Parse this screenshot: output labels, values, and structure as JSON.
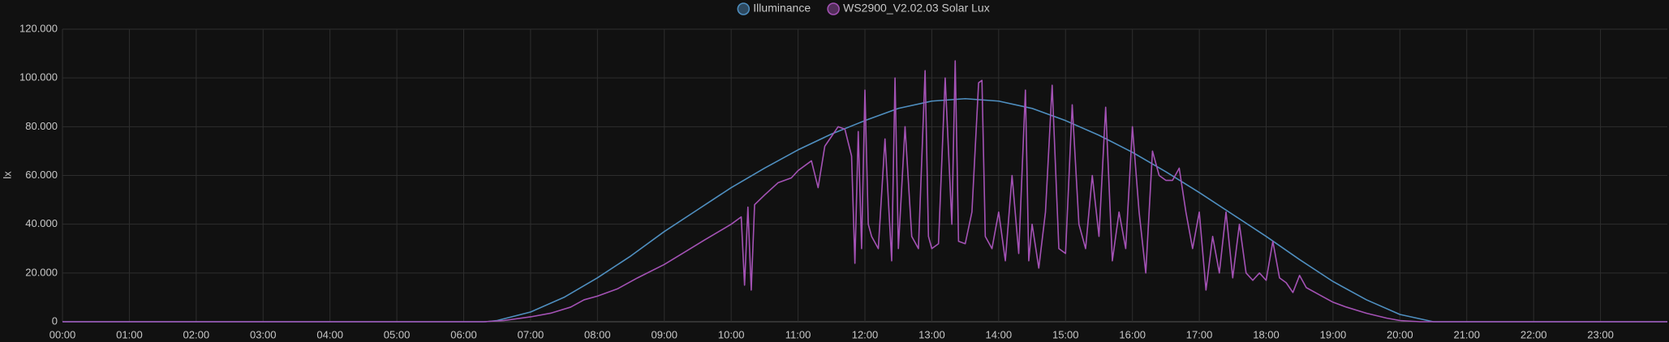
{
  "chart_data": {
    "type": "line",
    "y_label": "lx",
    "xlim": [
      0,
      24
    ],
    "xticks": [
      {
        "value": 0,
        "label": "00:00"
      },
      {
        "value": 1,
        "label": "01:00"
      },
      {
        "value": 2,
        "label": "02:00"
      },
      {
        "value": 3,
        "label": "03:00"
      },
      {
        "value": 4,
        "label": "04:00"
      },
      {
        "value": 5,
        "label": "05:00"
      },
      {
        "value": 6,
        "label": "06:00"
      },
      {
        "value": 7,
        "label": "07:00"
      },
      {
        "value": 8,
        "label": "08:00"
      },
      {
        "value": 9,
        "label": "09:00"
      },
      {
        "value": 10,
        "label": "10:00"
      },
      {
        "value": 11,
        "label": "11:00"
      },
      {
        "value": 12,
        "label": "12:00"
      },
      {
        "value": 13,
        "label": "13:00"
      },
      {
        "value": 14,
        "label": "14:00"
      },
      {
        "value": 15,
        "label": "15:00"
      },
      {
        "value": 16,
        "label": "16:00"
      },
      {
        "value": 17,
        "label": "17:00"
      },
      {
        "value": 18,
        "label": "18:00"
      },
      {
        "value": 19,
        "label": "19:00"
      },
      {
        "value": 20,
        "label": "20:00"
      },
      {
        "value": 21,
        "label": "21:00"
      },
      {
        "value": 22,
        "label": "22:00"
      },
      {
        "value": 23,
        "label": "23:00"
      }
    ],
    "ylim": [
      0,
      120000
    ],
    "yticks": [
      0,
      {
        "value": 20000,
        "label": "20.000"
      },
      {
        "value": 40000,
        "label": "40.000"
      },
      {
        "value": 60000,
        "label": "60.000"
      },
      {
        "value": 80000,
        "label": "80.000"
      },
      {
        "value": 100000,
        "label": "100.000"
      },
      {
        "value": 120000,
        "label": "120.000"
      }
    ],
    "grid": true,
    "legend": "top",
    "series": [
      {
        "name": "Illuminance",
        "color": "#4f8fc0",
        "x": [
          0,
          6.33,
          6.5,
          7,
          7.5,
          8,
          8.5,
          9,
          9.5,
          10,
          10.5,
          11,
          11.5,
          12,
          12.5,
          13,
          13.5,
          14,
          14.5,
          15,
          15.5,
          16,
          16.5,
          17,
          17.5,
          18,
          18.5,
          19,
          19.5,
          20,
          20.5,
          24
        ],
        "values": [
          0,
          0,
          500,
          4000,
          10000,
          18000,
          27000,
          37000,
          46000,
          55000,
          63000,
          70500,
          77000,
          82500,
          87500,
          90500,
          91500,
          90500,
          87500,
          82500,
          76500,
          69500,
          61500,
          53000,
          44000,
          35000,
          25500,
          16500,
          9000,
          3000,
          0,
          0
        ]
      },
      {
        "name": "WS2900_V2.02.03 Solar Lux",
        "color": "#a452b5",
        "x": [
          0,
          6.3,
          6.6,
          7.0,
          7.3,
          7.6,
          7.8,
          8.0,
          8.3,
          8.6,
          9.0,
          9.3,
          9.6,
          10.0,
          10.15,
          10.2,
          10.25,
          10.3,
          10.35,
          10.5,
          10.7,
          10.9,
          11.0,
          11.2,
          11.3,
          11.4,
          11.5,
          11.6,
          11.7,
          11.8,
          11.85,
          11.9,
          11.95,
          12.0,
          12.05,
          12.1,
          12.2,
          12.3,
          12.4,
          12.45,
          12.5,
          12.6,
          12.7,
          12.8,
          12.9,
          12.95,
          13.0,
          13.1,
          13.2,
          13.3,
          13.35,
          13.4,
          13.5,
          13.6,
          13.7,
          13.75,
          13.8,
          13.9,
          14.0,
          14.1,
          14.2,
          14.3,
          14.4,
          14.45,
          14.5,
          14.6,
          14.7,
          14.8,
          14.9,
          15.0,
          15.1,
          15.2,
          15.3,
          15.4,
          15.5,
          15.6,
          15.7,
          15.8,
          15.9,
          16.0,
          16.1,
          16.2,
          16.3,
          16.4,
          16.5,
          16.6,
          16.7,
          16.8,
          16.9,
          17.0,
          17.1,
          17.2,
          17.3,
          17.4,
          17.5,
          17.6,
          17.7,
          17.8,
          17.9,
          18.0,
          18.1,
          18.2,
          18.3,
          18.4,
          18.5,
          18.6,
          18.8,
          19.0,
          19.2,
          19.5,
          19.8,
          20.0,
          20.3,
          24
        ],
        "values": [
          0,
          0,
          500,
          2000,
          3500,
          6000,
          9000,
          10500,
          13500,
          18000,
          23500,
          28500,
          33500,
          40000,
          43000,
          15000,
          47000,
          13000,
          48000,
          52000,
          57000,
          59000,
          62000,
          66000,
          55000,
          72000,
          76000,
          80000,
          79000,
          68000,
          24000,
          78000,
          30000,
          95000,
          40000,
          35000,
          30000,
          75000,
          25000,
          100000,
          30000,
          80000,
          35000,
          30000,
          103000,
          35000,
          30000,
          32000,
          100000,
          40000,
          107000,
          33000,
          32000,
          45000,
          98000,
          99000,
          35000,
          30000,
          45000,
          25000,
          60000,
          28000,
          95000,
          25000,
          40000,
          22000,
          45000,
          97000,
          30000,
          28000,
          89000,
          40000,
          30000,
          60000,
          35000,
          88000,
          25000,
          45000,
          30000,
          80000,
          45000,
          20000,
          70000,
          60000,
          58000,
          58000,
          63000,
          45000,
          30000,
          45000,
          13000,
          35000,
          20000,
          45000,
          18000,
          40000,
          20000,
          17000,
          20000,
          17000,
          33000,
          18000,
          16000,
          12000,
          19000,
          14000,
          11000,
          8000,
          6000,
          3500,
          1500,
          500,
          0,
          0
        ]
      }
    ]
  }
}
